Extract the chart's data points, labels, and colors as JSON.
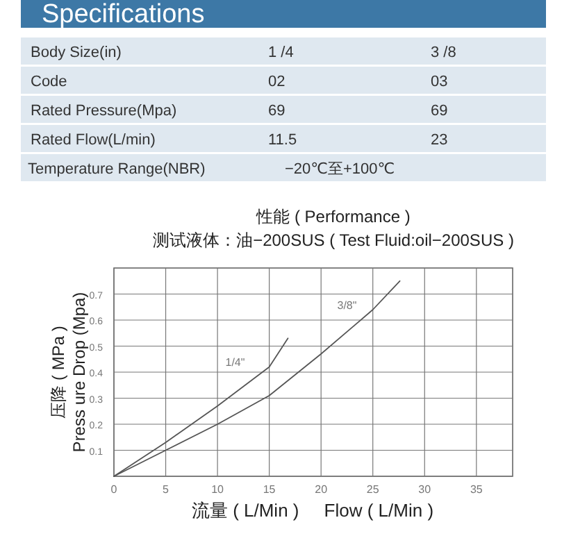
{
  "chart_data": [
    {
      "type": "other",
      "title": "Specifications",
      "annotations": [
        "Body Size(in)",
        "1 /4",
        "3 /8",
        "Code",
        "02",
        "03",
        "Rated Pressure(Mpa)",
        "69",
        "69",
        "Rated Flow(L/min)",
        "11.5",
        "23",
        "Temperature Range(NBR)",
        "−20℃至+100℃"
      ]
    },
    {
      "type": "line",
      "title": "性能 ( Performance )",
      "subtitle": "测试液体：油−200SUS ( Test Fluid:oil−200SUS )",
      "xlabel": "流量 ( L/Min )     Flow ( L/Min )",
      "ylabel": "压降 ( MPa )\nPress ure Drop (Mpa)",
      "xlim": [
        0,
        38.5
      ],
      "ylim": [
        0,
        0.8
      ],
      "xticks": [
        0,
        5,
        10,
        15,
        20,
        25,
        30,
        35
      ],
      "yticks": [
        {
          "value": 0,
          "label": null
        },
        0.1,
        0.2,
        0.3,
        0.4,
        0.5,
        0.6,
        0.7
      ],
      "grid": true,
      "series": [
        {
          "name": "1/4\"",
          "color": "#555555",
          "x": [
            0,
            5,
            10,
            15,
            16.8
          ],
          "values": [
            0,
            0.13,
            0.27,
            0.42,
            0.53
          ]
        },
        {
          "name": "3/8\"",
          "color": "#555555",
          "x": [
            0,
            5,
            10,
            15,
            20,
            25,
            27.6
          ],
          "values": [
            0,
            0.1,
            0.2,
            0.31,
            0.47,
            0.64,
            0.75
          ]
        }
      ]
    }
  ]
}
